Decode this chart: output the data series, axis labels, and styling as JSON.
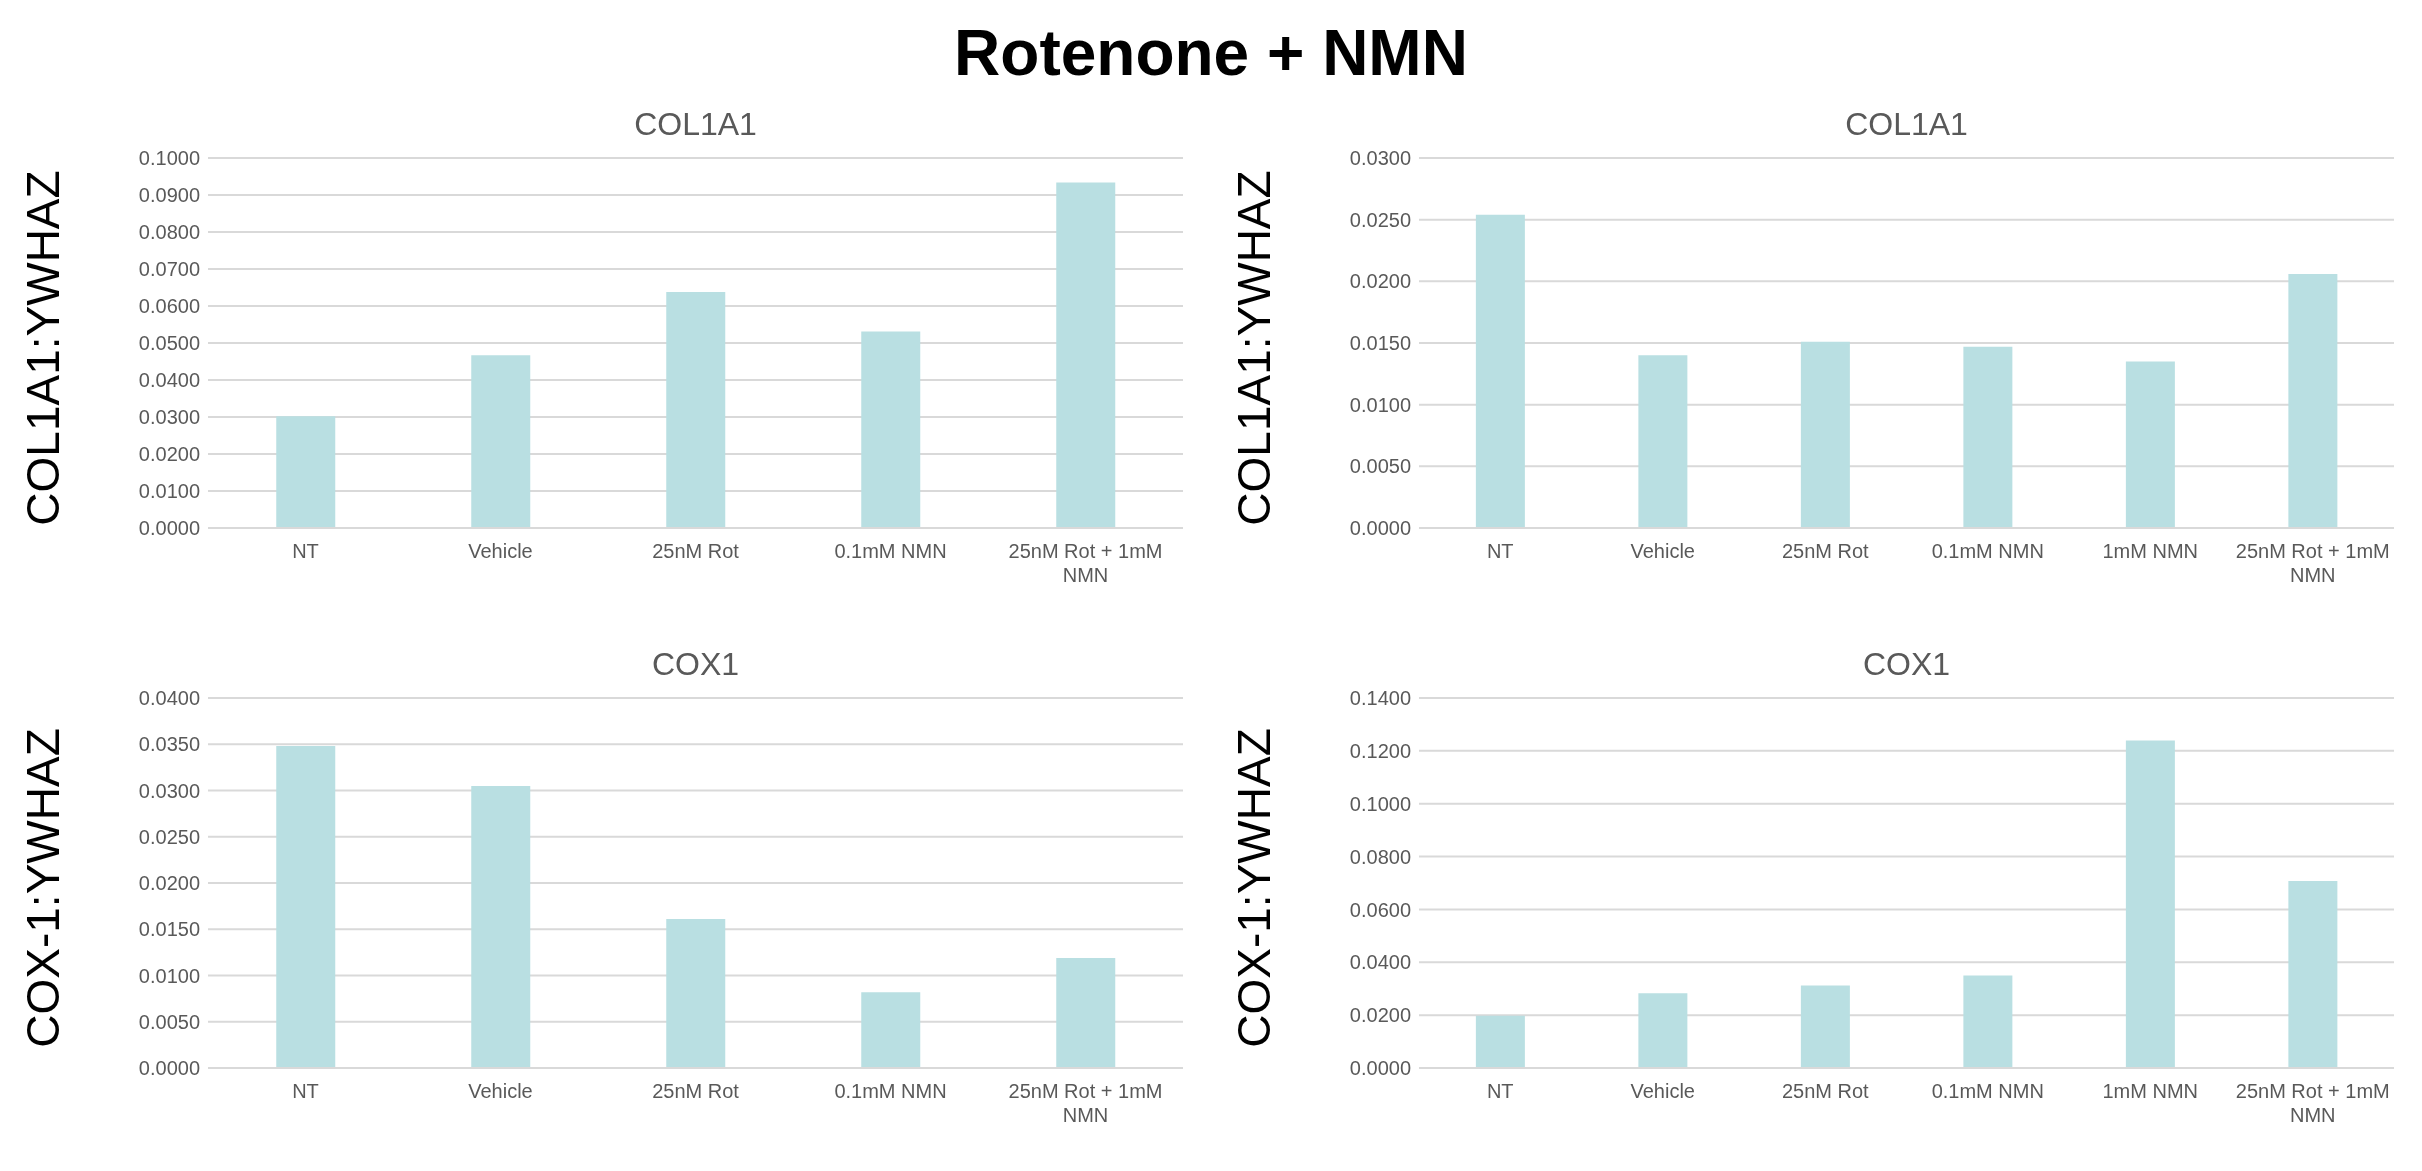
{
  "chart_data": [
    {
      "type": "other",
      "title": "Rotenone + NMN"
    },
    {
      "type": "bar",
      "title": "COL1A1",
      "ylabel": "COL1A1:YWHAZ",
      "categories": [
        "NT",
        "Vehicle",
        "25nM Rot",
        "0.1mM NMN",
        "25nM Rot + 1mM NMN"
      ],
      "values": [
        0.0302,
        0.0467,
        0.0638,
        0.0531,
        0.0934
      ],
      "color": "#b9dfe2",
      "ylim": [
        0,
        0.1
      ],
      "yticks": [
        {
          "value": 0,
          "label": "0.0000"
        },
        {
          "value": 0.01,
          "label": "0.0100"
        },
        {
          "value": 0.02,
          "label": "0.0200"
        },
        {
          "value": 0.03,
          "label": "0.0300"
        },
        {
          "value": 0.04,
          "label": "0.0400"
        },
        {
          "value": 0.05,
          "label": "0.0500"
        },
        {
          "value": 0.06,
          "label": "0.0600"
        },
        {
          "value": 0.07,
          "label": "0.0700"
        },
        {
          "value": 0.08,
          "label": "0.0800"
        },
        {
          "value": 0.09,
          "label": "0.0900"
        },
        {
          "value": 0.1,
          "label": "0.1000"
        }
      ],
      "grid": "y",
      "legend": false
    },
    {
      "type": "bar",
      "title": "COL1A1",
      "ylabel": "COL1A1:YWHAZ",
      "categories": [
        "NT",
        "Vehicle",
        "25nM Rot",
        "0.1mM NMN",
        "1mM NMN",
        "25nM Rot + 1mM NMN"
      ],
      "values": [
        0.0254,
        0.014,
        0.0151,
        0.0147,
        0.0135,
        0.0206
      ],
      "color": "#b9dfe2",
      "ylim": [
        0,
        0.03
      ],
      "yticks": [
        {
          "value": 0,
          "label": "0.0000"
        },
        {
          "value": 0.005,
          "label": "0.0050"
        },
        {
          "value": 0.01,
          "label": "0.0100"
        },
        {
          "value": 0.015,
          "label": "0.0150"
        },
        {
          "value": 0.02,
          "label": "0.0200"
        },
        {
          "value": 0.025,
          "label": "0.0250"
        },
        {
          "value": 0.03,
          "label": "0.0300"
        }
      ],
      "grid": "y",
      "legend": false
    },
    {
      "type": "bar",
      "title": "COX1",
      "ylabel": "COX-1:YWHAZ",
      "categories": [
        "NT",
        "Vehicle",
        "25nM Rot",
        "0.1mM NMN",
        "25nM Rot + 1mM NMN"
      ],
      "values": [
        0.0348,
        0.0305,
        0.0161,
        0.0082,
        0.0119
      ],
      "color": "#b9dfe2",
      "ylim": [
        0,
        0.04
      ],
      "yticks": [
        {
          "value": 0,
          "label": "0.0000"
        },
        {
          "value": 0.005,
          "label": "0.0050"
        },
        {
          "value": 0.01,
          "label": "0.0100"
        },
        {
          "value": 0.015,
          "label": "0.0150"
        },
        {
          "value": 0.02,
          "label": "0.0200"
        },
        {
          "value": 0.025,
          "label": "0.0250"
        },
        {
          "value": 0.03,
          "label": "0.0300"
        },
        {
          "value": 0.035,
          "label": "0.0350"
        },
        {
          "value": 0.04,
          "label": "0.0400"
        }
      ],
      "grid": "y",
      "legend": false
    },
    {
      "type": "bar",
      "title": "COX1",
      "ylabel": "COX-1:YWHAZ",
      "categories": [
        "NT",
        "Vehicle",
        "25nM Rot",
        "0.1mM NMN",
        "1mM NMN",
        "25nM Rot + 1mM NMN"
      ],
      "values": [
        0.0198,
        0.0283,
        0.0312,
        0.035,
        0.1239,
        0.0708
      ],
      "color": "#b9dfe2",
      "ylim": [
        0,
        0.14
      ],
      "yticks": [
        {
          "value": 0,
          "label": "0.0000"
        },
        {
          "value": 0.02,
          "label": "0.0200"
        },
        {
          "value": 0.04,
          "label": "0.0400"
        },
        {
          "value": 0.06,
          "label": "0.0600"
        },
        {
          "value": 0.08,
          "label": "0.0800"
        },
        {
          "value": 0.1,
          "label": "0.1000"
        },
        {
          "value": 0.12,
          "label": "0.1200"
        },
        {
          "value": 0.14,
          "label": "0.1400"
        }
      ],
      "grid": "y",
      "legend": false
    }
  ]
}
